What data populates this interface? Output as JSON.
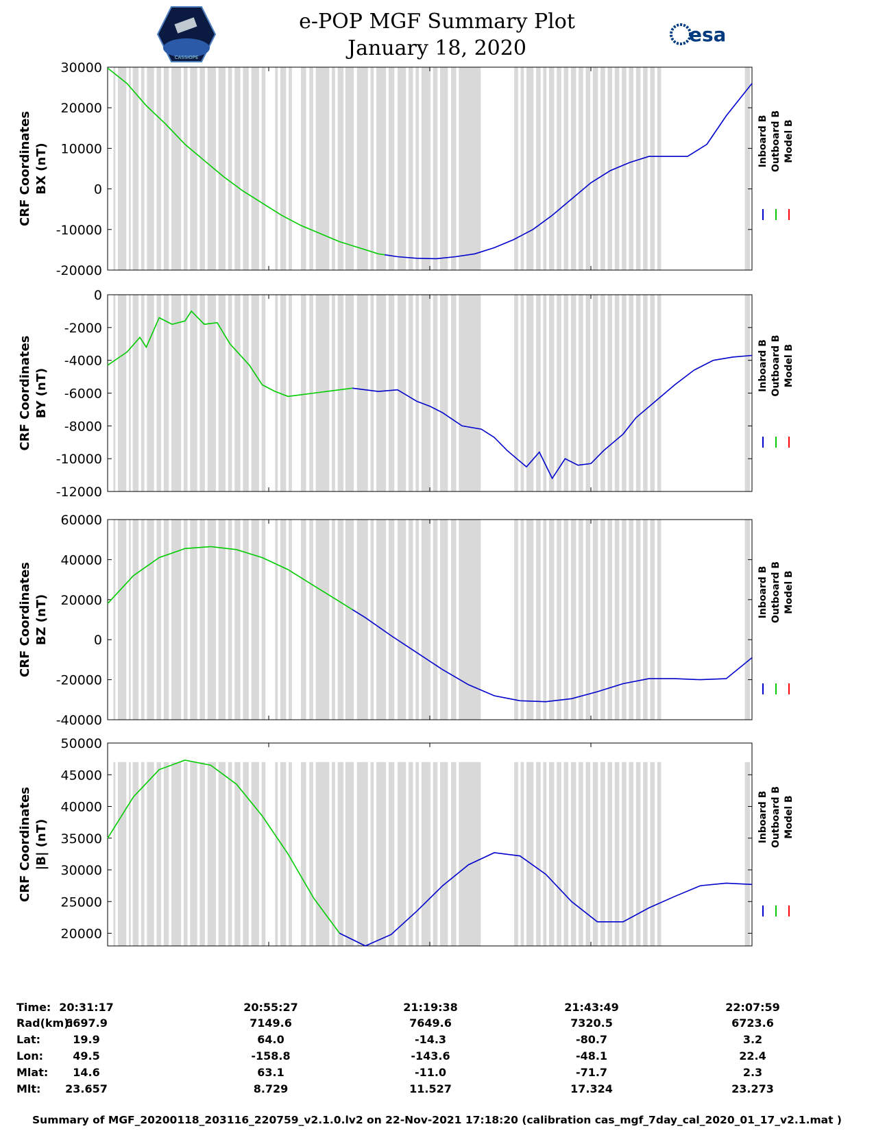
{
  "title": {
    "line1": "e-POP MGF Summary Plot",
    "line2": "January 18, 2020"
  },
  "logos": {
    "left_icon": "satellite-mission-patch-icon",
    "left_text": "CASSIOPE",
    "right_text": "esa"
  },
  "legend": [
    "Inboard B",
    "Outboard B",
    "Model B"
  ],
  "colors": {
    "inboard": "#0000cc",
    "outboard": "#00cc00",
    "model": "#ff0000",
    "gap": "#d9d9d9"
  },
  "gaps": [
    [
      0.009,
      0.012
    ],
    [
      0.016,
      0.029
    ],
    [
      0.033,
      0.036
    ],
    [
      0.039,
      0.048
    ],
    [
      0.052,
      0.057
    ],
    [
      0.061,
      0.072
    ],
    [
      0.076,
      0.083
    ],
    [
      0.087,
      0.095
    ],
    [
      0.099,
      0.114
    ],
    [
      0.118,
      0.124
    ],
    [
      0.128,
      0.139
    ],
    [
      0.143,
      0.151
    ],
    [
      0.155,
      0.168
    ],
    [
      0.172,
      0.183
    ],
    [
      0.187,
      0.193
    ],
    [
      0.197,
      0.206
    ],
    [
      0.21,
      0.219
    ],
    [
      0.223,
      0.235
    ],
    [
      0.239,
      0.245
    ],
    [
      0.26,
      0.264
    ],
    [
      0.268,
      0.277
    ],
    [
      0.281,
      0.286
    ],
    [
      0.3,
      0.308
    ],
    [
      0.313,
      0.319
    ],
    [
      0.323,
      0.344
    ],
    [
      0.348,
      0.353
    ],
    [
      0.357,
      0.366
    ],
    [
      0.369,
      0.382
    ],
    [
      0.387,
      0.404
    ],
    [
      0.408,
      0.413
    ],
    [
      0.417,
      0.432
    ],
    [
      0.436,
      0.445
    ],
    [
      0.45,
      0.463
    ],
    [
      0.467,
      0.474
    ],
    [
      0.478,
      0.483
    ],
    [
      0.487,
      0.501
    ],
    [
      0.505,
      0.512
    ],
    [
      0.516,
      0.528
    ],
    [
      0.533,
      0.541
    ],
    [
      0.545,
      0.579
    ],
    [
      0.631,
      0.637
    ],
    [
      0.641,
      0.646
    ],
    [
      0.65,
      0.661
    ],
    [
      0.665,
      0.672
    ],
    [
      0.676,
      0.681
    ],
    [
      0.685,
      0.693
    ],
    [
      0.697,
      0.704
    ],
    [
      0.708,
      0.715
    ],
    [
      0.719,
      0.727
    ],
    [
      0.731,
      0.738
    ],
    [
      0.742,
      0.749
    ],
    [
      0.753,
      0.761
    ],
    [
      0.765,
      0.772
    ],
    [
      0.776,
      0.783
    ],
    [
      0.787,
      0.794
    ],
    [
      0.798,
      0.805
    ],
    [
      0.809,
      0.816
    ],
    [
      0.82,
      0.827
    ],
    [
      0.831,
      0.838
    ],
    [
      0.842,
      0.849
    ],
    [
      0.853,
      0.859
    ],
    [
      0.989,
      0.997
    ]
  ],
  "chart_data": [
    {
      "type": "line",
      "ylabel1": "CRF Coordinates",
      "ylabel2": "BX (nT)",
      "ylim": [
        -20000,
        30000
      ],
      "yticks": [
        "30000",
        "20000",
        "10000",
        "0",
        "-10000",
        "-20000"
      ],
      "ytickvals": [
        30000,
        20000,
        10000,
        0,
        -10000,
        -20000
      ],
      "switch_x": 0.43,
      "x": [
        0,
        0.03,
        0.06,
        0.09,
        0.12,
        0.15,
        0.18,
        0.21,
        0.24,
        0.27,
        0.3,
        0.33,
        0.36,
        0.39,
        0.42,
        0.45,
        0.48,
        0.51,
        0.54,
        0.57,
        0.6,
        0.63,
        0.66,
        0.69,
        0.72,
        0.75,
        0.78,
        0.81,
        0.84,
        0.87,
        0.9,
        0.93,
        0.96,
        1.0
      ],
      "values": [
        29800,
        26000,
        20500,
        16000,
        11000,
        7000,
        3000,
        -500,
        -3500,
        -6500,
        -9000,
        -11000,
        -13000,
        -14500,
        -16000,
        -16700,
        -17100,
        -17200,
        -16700,
        -16000,
        -14500,
        -12500,
        -10000,
        -6500,
        -2500,
        1500,
        4500,
        6500,
        8000,
        8000,
        8000,
        11000,
        18000,
        26000
      ]
    },
    {
      "type": "line",
      "ylabel1": "CRF Coordinates",
      "ylabel2": "BY (nT)",
      "ylim": [
        -12000,
        0
      ],
      "yticks": [
        "0",
        "-2000",
        "-4000",
        "-6000",
        "-8000",
        "-10000",
        "-12000"
      ],
      "ytickvals": [
        0,
        -2000,
        -4000,
        -6000,
        -8000,
        -10000,
        -12000
      ],
      "switch_x": 0.38,
      "x": [
        0,
        0.03,
        0.05,
        0.06,
        0.08,
        0.1,
        0.12,
        0.13,
        0.15,
        0.17,
        0.19,
        0.22,
        0.24,
        0.26,
        0.28,
        0.3,
        0.32,
        0.34,
        0.36,
        0.38,
        0.4,
        0.42,
        0.45,
        0.48,
        0.5,
        0.52,
        0.55,
        0.58,
        0.6,
        0.62,
        0.65,
        0.67,
        0.69,
        0.71,
        0.73,
        0.75,
        0.77,
        0.8,
        0.82,
        0.85,
        0.88,
        0.91,
        0.94,
        0.97,
        1.0
      ],
      "values": [
        -4300,
        -3500,
        -2600,
        -3200,
        -1400,
        -1800,
        -1600,
        -1000,
        -1800,
        -1700,
        -3000,
        -4300,
        -5500,
        -5900,
        -6200,
        -6100,
        -6000,
        -5900,
        -5800,
        -5700,
        -5800,
        -5900,
        -5800,
        -6500,
        -6800,
        -7200,
        -8000,
        -8200,
        -8700,
        -9500,
        -10500,
        -9600,
        -11200,
        -10000,
        -10400,
        -10300,
        -9500,
        -8500,
        -7500,
        -6500,
        -5500,
        -4600,
        -4000,
        -3800,
        -3700
      ]
    },
    {
      "type": "line",
      "ylabel1": "CRF Coordinates",
      "ylabel2": "BZ (nT)",
      "ylim": [
        -40000,
        60000
      ],
      "yticks": [
        "60000",
        "40000",
        "20000",
        "0",
        "-20000",
        "-40000"
      ],
      "ytickvals": [
        60000,
        40000,
        20000,
        0,
        -20000,
        -40000
      ],
      "switch_x": 0.38,
      "x": [
        0,
        0.04,
        0.08,
        0.12,
        0.16,
        0.2,
        0.24,
        0.28,
        0.32,
        0.36,
        0.4,
        0.44,
        0.48,
        0.52,
        0.56,
        0.6,
        0.64,
        0.68,
        0.72,
        0.76,
        0.8,
        0.84,
        0.88,
        0.92,
        0.96,
        1.0
      ],
      "values": [
        18000,
        32000,
        41000,
        45500,
        46500,
        45000,
        41000,
        35000,
        27000,
        19000,
        11000,
        2000,
        -6500,
        -15000,
        -22500,
        -28000,
        -30500,
        -31000,
        -29500,
        -26000,
        -22000,
        -19500,
        -19500,
        -20000,
        -19500,
        -9000
      ]
    },
    {
      "type": "line",
      "ylabel1": "CRF Coordinates",
      "ylabel2": "|B| (nT)",
      "ylim": [
        18000,
        50000
      ],
      "yticks": [
        "50000",
        "45000",
        "40000",
        "35000",
        "30000",
        "25000",
        "20000"
      ],
      "ytickvals": [
        50000,
        45000,
        40000,
        35000,
        30000,
        25000,
        20000
      ],
      "switch_x": 0.36,
      "x": [
        0,
        0.04,
        0.08,
        0.12,
        0.16,
        0.2,
        0.24,
        0.28,
        0.32,
        0.36,
        0.4,
        0.44,
        0.48,
        0.52,
        0.56,
        0.6,
        0.64,
        0.68,
        0.72,
        0.76,
        0.8,
        0.84,
        0.88,
        0.92,
        0.96,
        1.0
      ],
      "values": [
        35000,
        41500,
        45800,
        47300,
        46500,
        43500,
        38500,
        32500,
        25500,
        20000,
        18000,
        19800,
        23500,
        27500,
        30800,
        32700,
        32200,
        29300,
        25000,
        21800,
        21800,
        24000,
        25800,
        27500,
        27900,
        27700
      ]
    }
  ],
  "xticks": [
    "20:31:17",
    "20:55:27",
    "21:19:38",
    "21:43:49",
    "22:07:59"
  ],
  "info": {
    "labels": [
      "Time:",
      "Rad(km):",
      "Lat:",
      "Lon:",
      "Mlat:",
      "Mlt:"
    ],
    "rows": [
      [
        "20:31:17",
        "20:55:27",
        "21:19:38",
        "21:43:49",
        "22:07:59"
      ],
      [
        "6697.9",
        "7149.6",
        "7649.6",
        "7320.5",
        "6723.6"
      ],
      [
        "19.9",
        "64.0",
        "-14.3",
        "-80.7",
        "3.2"
      ],
      [
        "49.5",
        "-158.8",
        "-143.6",
        "-48.1",
        "22.4"
      ],
      [
        "14.6",
        "63.1",
        "-11.0",
        "-71.7",
        "2.3"
      ],
      [
        "23.657",
        "8.729",
        "11.527",
        "17.324",
        "23.273"
      ]
    ]
  },
  "footer": "Summary of MGF_20200118_203116_220759_v2.1.0.lv2 on 22-Nov-2021 17:18:20 (calibration cas_mgf_7day_cal_2020_01_17_v2.1.mat )"
}
